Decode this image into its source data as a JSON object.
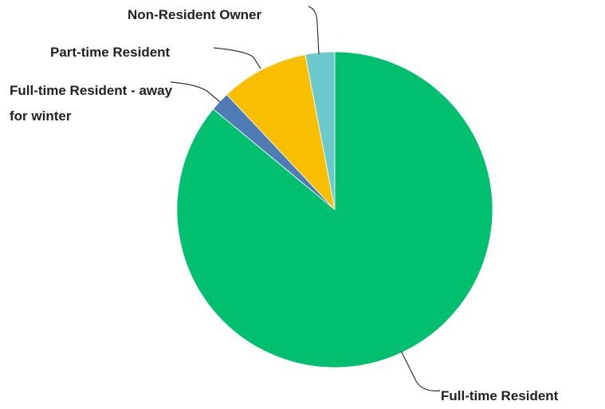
{
  "chart_data": {
    "type": "pie",
    "categories": [
      "Full-time Resident",
      "Full-time Resident - away for winter",
      "Part-time Resident",
      "Non-Resident Owner"
    ],
    "values": [
      86,
      2,
      9,
      3
    ],
    "colors": [
      "#00bf6f",
      "#507cb6",
      "#f9be00",
      "#6bc8cd"
    ]
  }
}
